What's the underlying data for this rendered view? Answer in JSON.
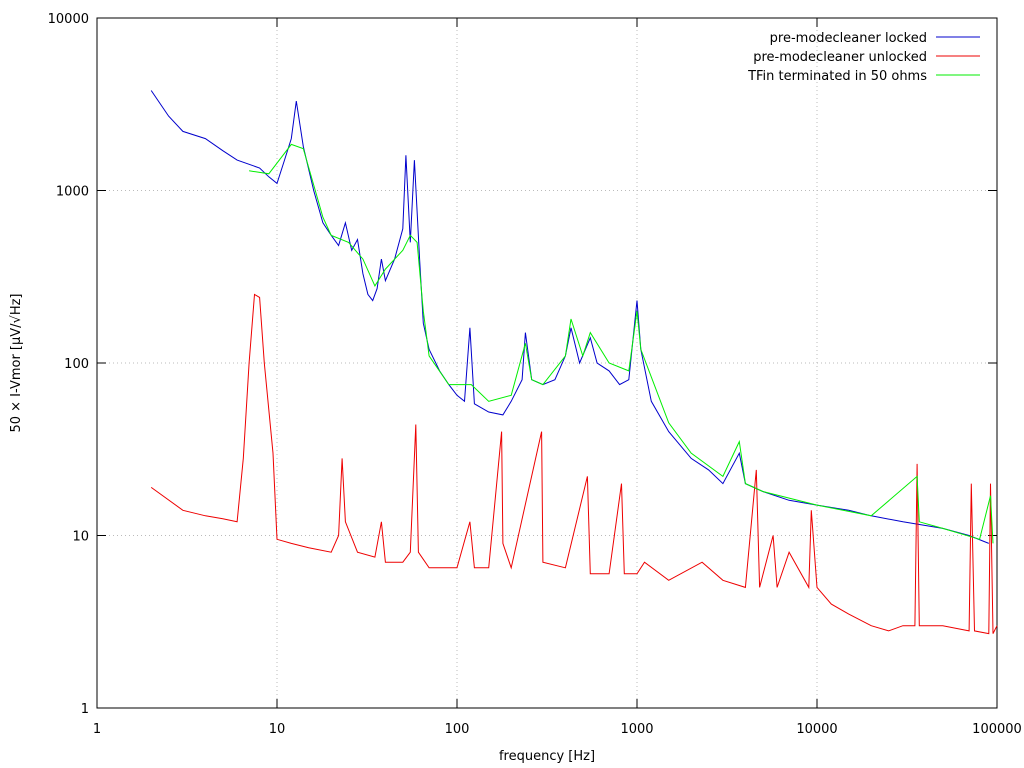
{
  "chart_data": {
    "type": "line",
    "xlabel": "frequency [Hz]",
    "ylabel": "50 × I-Vmor [µV/√Hz]",
    "xscale": "log",
    "yscale": "log",
    "xlim": [
      1,
      100000
    ],
    "ylim": [
      1,
      10000
    ],
    "xticks": [
      1,
      10,
      100,
      1000,
      10000,
      100000
    ],
    "yticks": [
      1,
      10,
      100,
      1000,
      10000
    ],
    "grid": true,
    "legend": "upper right",
    "series": [
      {
        "name": "pre-modecleaner locked",
        "color": "#0000cc",
        "x": [
          2,
          2.5,
          3,
          4,
          5,
          6,
          8,
          9,
          10,
          11,
          12,
          12.8,
          14,
          16,
          18,
          20,
          22,
          24,
          26,
          28,
          30,
          32,
          34,
          36,
          38,
          40,
          45,
          50,
          52,
          55,
          58,
          62,
          65,
          70,
          80,
          90,
          100,
          110,
          118,
          125,
          150,
          180,
          200,
          230,
          240,
          260,
          300,
          350,
          400,
          430,
          480,
          550,
          600,
          700,
          800,
          900,
          1000,
          1050,
          1200,
          1500,
          2000,
          2500,
          3000,
          3700,
          4000,
          5000,
          7000,
          10000,
          15000,
          20000,
          30000,
          50000,
          70000,
          90000
        ],
        "values": [
          3800,
          2700,
          2200,
          2000,
          1700,
          1500,
          1350,
          1200,
          1100,
          1500,
          2000,
          3300,
          1800,
          1000,
          650,
          550,
          480,
          650,
          450,
          520,
          330,
          250,
          230,
          270,
          400,
          300,
          400,
          600,
          1600,
          500,
          1500,
          400,
          170,
          120,
          90,
          75,
          65,
          60,
          160,
          58,
          52,
          50,
          60,
          80,
          150,
          80,
          75,
          80,
          110,
          160,
          100,
          140,
          100,
          90,
          75,
          80,
          230,
          120,
          60,
          40,
          28,
          24,
          20,
          30,
          20,
          18,
          16,
          15,
          14,
          13,
          12,
          11,
          10,
          9
        ]
      },
      {
        "name": "pre-modecleaner unlocked",
        "color": "#ee0000",
        "x": [
          2,
          3,
          4,
          5,
          6,
          6.5,
          7,
          7.5,
          8,
          8.5,
          9.5,
          10,
          12,
          15,
          20,
          22,
          23,
          24,
          28,
          35,
          38,
          40,
          50,
          55,
          59,
          61,
          70,
          100,
          118,
          125,
          150,
          177,
          180,
          200,
          295,
          300,
          400,
          530,
          550,
          700,
          820,
          850,
          1000,
          1100,
          1500,
          2300,
          3000,
          4000,
          4600,
          4800,
          5700,
          6000,
          7000,
          9000,
          9300,
          10000,
          12000,
          15000,
          20000,
          25000,
          30000,
          35000,
          36000,
          37000,
          50000,
          70000,
          72000,
          75000,
          90000,
          92000,
          95000,
          100000
        ],
        "values": [
          19,
          14,
          13,
          12.5,
          12,
          28,
          100,
          250,
          240,
          100,
          30,
          9.5,
          9,
          8.5,
          8,
          10,
          28,
          12,
          8,
          7.5,
          12,
          7,
          7,
          8,
          44,
          8,
          6.5,
          6.5,
          12,
          6.5,
          6.5,
          40,
          9,
          6.5,
          40,
          7,
          6.5,
          22,
          6,
          6,
          20,
          6,
          6,
          7,
          5.5,
          7,
          5.5,
          5,
          24,
          5,
          10,
          5,
          8,
          5,
          14,
          5,
          4,
          3.5,
          3,
          2.8,
          3,
          3,
          26,
          3,
          3,
          2.8,
          20,
          2.8,
          2.7,
          20,
          2.7,
          3
        ]
      },
      {
        "name": "TFin terminated in 50 ohms",
        "color": "#00ee00",
        "x": [
          7,
          9,
          12,
          14,
          18,
          20,
          25,
          30,
          35,
          40,
          50,
          55,
          60,
          65,
          70,
          90,
          120,
          150,
          200,
          240,
          260,
          300,
          400,
          430,
          500,
          550,
          700,
          900,
          1000,
          1050,
          1500,
          2000,
          3000,
          3700,
          4000,
          5000,
          10000,
          20000,
          36000,
          37000,
          50000,
          80000,
          92000,
          95000
        ],
        "values": [
          1300,
          1250,
          1850,
          1750,
          700,
          550,
          500,
          400,
          280,
          350,
          450,
          550,
          500,
          200,
          110,
          75,
          75,
          60,
          65,
          130,
          80,
          75,
          110,
          180,
          110,
          150,
          100,
          90,
          200,
          120,
          45,
          30,
          22,
          35,
          20,
          18,
          15,
          13,
          22,
          12,
          11,
          9.5,
          17,
          9
        ]
      }
    ]
  }
}
